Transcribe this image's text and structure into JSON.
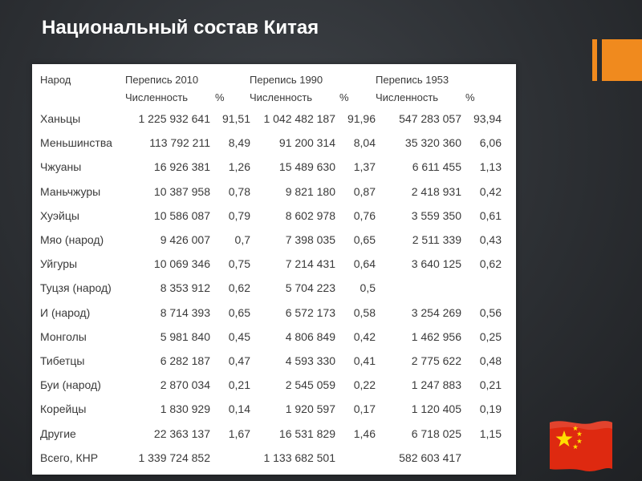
{
  "title": "Национальный состав Китая",
  "table": {
    "headers": {
      "people": "Народ",
      "census2010": "Перепись 2010",
      "census1990": "Перепись 1990",
      "census1953": "Перепись 1953",
      "count": "Численность",
      "percent": "%"
    },
    "rows": [
      {
        "name": "Ханьцы",
        "c2010": "1 225 932 641",
        "p2010": "91,51",
        "c1990": "1 042 482 187",
        "p1990": "91,96",
        "c1953": "547 283 057",
        "p1953": "93,94"
      },
      {
        "name": "Меньшинства",
        "c2010": "113 792 211",
        "p2010": "8,49",
        "c1990": "91 200 314",
        "p1990": "8,04",
        "c1953": "35 320 360",
        "p1953": "6,06"
      },
      {
        "name": "Чжуаны",
        "c2010": "16 926 381",
        "p2010": "1,26",
        "c1990": "15 489 630",
        "p1990": "1,37",
        "c1953": "6 611 455",
        "p1953": "1,13"
      },
      {
        "name": "Маньчжуры",
        "c2010": "10 387 958",
        "p2010": "0,78",
        "c1990": "9 821 180",
        "p1990": "0,87",
        "c1953": "2 418 931",
        "p1953": "0,42"
      },
      {
        "name": "Хуэйцы",
        "c2010": "10 586 087",
        "p2010": "0,79",
        "c1990": "8 602 978",
        "p1990": "0,76",
        "c1953": "3 559 350",
        "p1953": "0,61"
      },
      {
        "name": "Мяо (народ)",
        "c2010": "9 426 007",
        "p2010": "0,7",
        "c1990": "7 398 035",
        "p1990": "0,65",
        "c1953": "2 511 339",
        "p1953": "0,43"
      },
      {
        "name": "Уйгуры",
        "c2010": "10 069 346",
        "p2010": "0,75",
        "c1990": "7 214 431",
        "p1990": "0,64",
        "c1953": "3 640 125",
        "p1953": "0,62"
      },
      {
        "name": "Туцзя (народ)",
        "c2010": "8 353 912",
        "p2010": "0,62",
        "c1990": "5 704 223",
        "p1990": "0,5",
        "c1953": "",
        "p1953": ""
      },
      {
        "name": "И (народ)",
        "c2010": "8 714 393",
        "p2010": "0,65",
        "c1990": "6 572 173",
        "p1990": "0,58",
        "c1953": "3 254 269",
        "p1953": "0,56"
      },
      {
        "name": "Монголы",
        "c2010": "5 981 840",
        "p2010": "0,45",
        "c1990": "4 806 849",
        "p1990": "0,42",
        "c1953": "1 462 956",
        "p1953": "0,25"
      },
      {
        "name": "Тибетцы",
        "c2010": "6 282 187",
        "p2010": "0,47",
        "c1990": "4 593 330",
        "p1990": "0,41",
        "c1953": "2 775 622",
        "p1953": "0,48"
      },
      {
        "name": "Буи (народ)",
        "c2010": "2 870 034",
        "p2010": "0,21",
        "c1990": "2 545 059",
        "p1990": "0,22",
        "c1953": "1 247 883",
        "p1953": "0,21"
      },
      {
        "name": "Корейцы",
        "c2010": "1 830 929",
        "p2010": "0,14",
        "c1990": "1 920 597",
        "p1990": "0,17",
        "c1953": "1 120 405",
        "p1953": "0,19"
      },
      {
        "name": "Другие",
        "c2010": "22 363 137",
        "p2010": "1,67",
        "c1990": "16 531 829",
        "p1990": "1,46",
        "c1953": "6 718 025",
        "p1953": "1,15"
      },
      {
        "name": "Всего, КНР",
        "c2010": "1 339 724 852",
        "p2010": "",
        "c1990": "1 133 682 501",
        "p1990": "",
        "c1953": "582 603 417",
        "p1953": ""
      }
    ]
  },
  "colors": {
    "background": "#2c2f33",
    "accent": "#f08a1e",
    "flag_red": "#de2910",
    "flag_star": "#ffde00"
  },
  "icons": {
    "flag": "china-flag-icon",
    "deco": "orange-bars-decoration"
  }
}
